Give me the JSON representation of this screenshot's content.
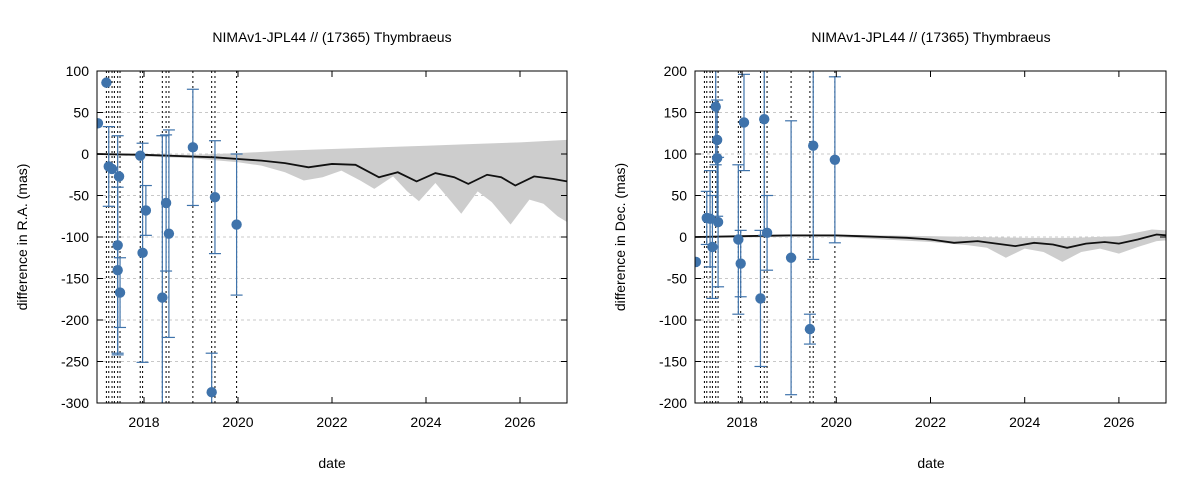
{
  "chart_data": [
    {
      "type": "scatter",
      "title": "NIMAv1-JPL44 // (17365) Thymbraeus",
      "xlabel": "date",
      "ylabel": "difference in R.A. (mas)",
      "xlim": [
        2017.0,
        2027.0
      ],
      "ylim": [
        -300,
        100
      ],
      "x_ticks": [
        2018,
        2020,
        2022,
        2024,
        2026
      ],
      "x_tick_labels": [
        "2018",
        "2020",
        "2022",
        "2024",
        "2026"
      ],
      "y_ticks": [
        100,
        50,
        0,
        -50,
        -100,
        -150,
        -200,
        -250,
        -300
      ],
      "y_tick_labels": [
        "100",
        "50",
        "0",
        "-50",
        "-100",
        "-150",
        "-200",
        "-250",
        "-300"
      ],
      "grid": true,
      "colors": {
        "points": "#3f73ab",
        "band": "#cdcdcd",
        "line": "#111111",
        "vline": "#000000",
        "grid": "#c8c8c8"
      },
      "observation_dates": [
        2017.2,
        2017.25,
        2017.32,
        2017.37,
        2017.44,
        2017.49,
        2017.92,
        2017.97,
        2018.39,
        2018.47,
        2018.53,
        2019.04,
        2019.44,
        2019.51,
        2019.97
      ],
      "points": [
        {
          "x": 2017.02,
          "y": 37,
          "err": 0
        },
        {
          "x": 2017.2,
          "y": 86,
          "err": 0
        },
        {
          "x": 2017.25,
          "y": -15,
          "err": 48
        },
        {
          "x": 2017.32,
          "y": -18,
          "err": 0
        },
        {
          "x": 2017.44,
          "y": -110,
          "err": 132
        },
        {
          "x": 2017.44,
          "y": -140,
          "err": 100
        },
        {
          "x": 2017.47,
          "y": -27,
          "err": 0
        },
        {
          "x": 2017.49,
          "y": -167,
          "err": 42
        },
        {
          "x": 2017.92,
          "y": -2,
          "err": 0
        },
        {
          "x": 2017.97,
          "y": -119,
          "err": 132
        },
        {
          "x": 2018.04,
          "y": -68,
          "err": 30
        },
        {
          "x": 2018.39,
          "y": -173,
          "err": 195
        },
        {
          "x": 2018.47,
          "y": -59,
          "err": 82
        },
        {
          "x": 2018.53,
          "y": -96,
          "err": 125
        },
        {
          "x": 2019.04,
          "y": 8,
          "err": 70
        },
        {
          "x": 2019.44,
          "y": -287,
          "err": 47
        },
        {
          "x": 2019.51,
          "y": -52,
          "err": 68
        },
        {
          "x": 2019.97,
          "y": -85,
          "err": 85
        }
      ],
      "model_line": [
        [
          2017.0,
          0
        ],
        [
          2018.0,
          -1
        ],
        [
          2019.0,
          -3
        ],
        [
          2019.5,
          -4
        ],
        [
          2020.0,
          -6
        ],
        [
          2020.5,
          -8
        ],
        [
          2021.0,
          -11
        ],
        [
          2021.5,
          -16
        ],
        [
          2022.0,
          -12
        ],
        [
          2022.5,
          -13
        ],
        [
          2023.0,
          -28
        ],
        [
          2023.4,
          -22
        ],
        [
          2023.8,
          -33
        ],
        [
          2024.2,
          -23
        ],
        [
          2024.6,
          -28
        ],
        [
          2024.9,
          -36
        ],
        [
          2025.3,
          -25
        ],
        [
          2025.6,
          -28
        ],
        [
          2025.9,
          -38
        ],
        [
          2026.3,
          -27
        ],
        [
          2026.7,
          -30
        ],
        [
          2027.0,
          -33
        ]
      ],
      "band_upper": [
        [
          2017.0,
          1
        ],
        [
          2019.0,
          -1
        ],
        [
          2020.0,
          1
        ],
        [
          2021.0,
          4
        ],
        [
          2022.0,
          6
        ],
        [
          2023.0,
          8
        ],
        [
          2024.0,
          10
        ],
        [
          2025.0,
          12
        ],
        [
          2026.0,
          14
        ],
        [
          2027.0,
          17
        ]
      ],
      "band_lower": [
        [
          2017.0,
          -1
        ],
        [
          2019.0,
          -5
        ],
        [
          2020.0,
          -10
        ],
        [
          2020.5,
          -14
        ],
        [
          2021.0,
          -22
        ],
        [
          2021.4,
          -32
        ],
        [
          2021.8,
          -28
        ],
        [
          2022.2,
          -20
        ],
        [
          2022.6,
          -32
        ],
        [
          2022.9,
          -42
        ],
        [
          2023.3,
          -27
        ],
        [
          2023.6,
          -45
        ],
        [
          2023.85,
          -57
        ],
        [
          2024.2,
          -35
        ],
        [
          2024.5,
          -55
        ],
        [
          2024.75,
          -72
        ],
        [
          2025.1,
          -45
        ],
        [
          2025.4,
          -58
        ],
        [
          2025.8,
          -85
        ],
        [
          2026.2,
          -55
        ],
        [
          2026.5,
          -60
        ],
        [
          2026.8,
          -75
        ],
        [
          2027.0,
          -82
        ]
      ]
    },
    {
      "type": "scatter",
      "title": "NIMAv1-JPL44 // (17365) Thymbraeus",
      "xlabel": "date",
      "ylabel": "difference in Dec. (mas)",
      "xlim": [
        2017.0,
        2027.0
      ],
      "ylim": [
        -200,
        200
      ],
      "x_ticks": [
        2018,
        2020,
        2022,
        2024,
        2026
      ],
      "x_tick_labels": [
        "2018",
        "2020",
        "2022",
        "2024",
        "2026"
      ],
      "y_ticks": [
        200,
        150,
        100,
        50,
        0,
        -50,
        -100,
        -150,
        -200
      ],
      "y_tick_labels": [
        "200",
        "150",
        "100",
        "50",
        "0",
        "-50",
        "-100",
        "-150",
        "-200"
      ],
      "grid": true,
      "colors": {
        "points": "#3f73ab",
        "band": "#cdcdcd",
        "line": "#111111",
        "vline": "#000000",
        "grid": "#c8c8c8"
      },
      "observation_dates": [
        2017.2,
        2017.25,
        2017.32,
        2017.37,
        2017.44,
        2017.49,
        2017.92,
        2017.97,
        2018.39,
        2018.47,
        2018.53,
        2019.04,
        2019.44,
        2019.51,
        2019.97
      ],
      "points": [
        {
          "x": 2017.02,
          "y": -30,
          "err": 0
        },
        {
          "x": 2017.25,
          "y": 23,
          "err": 32
        },
        {
          "x": 2017.32,
          "y": 22,
          "err": 58
        },
        {
          "x": 2017.37,
          "y": -12,
          "err": 62
        },
        {
          "x": 2017.44,
          "y": 157,
          "err": 70
        },
        {
          "x": 2017.47,
          "y": 117,
          "err": 0
        },
        {
          "x": 2017.47,
          "y": 95,
          "err": 70
        },
        {
          "x": 2017.49,
          "y": 18,
          "err": 78
        },
        {
          "x": 2017.92,
          "y": -3,
          "err": 90
        },
        {
          "x": 2017.97,
          "y": -32,
          "err": 40
        },
        {
          "x": 2018.04,
          "y": 138,
          "err": 58
        },
        {
          "x": 2018.39,
          "y": -74,
          "err": 82
        },
        {
          "x": 2018.47,
          "y": 142,
          "err": 140
        },
        {
          "x": 2018.53,
          "y": 5,
          "err": 45
        },
        {
          "x": 2019.04,
          "y": -25,
          "err": 165
        },
        {
          "x": 2019.44,
          "y": -111,
          "err": 18
        },
        {
          "x": 2019.51,
          "y": 110,
          "err": 137
        },
        {
          "x": 2019.97,
          "y": 93,
          "err": 100
        }
      ],
      "model_line": [
        [
          2017.0,
          0
        ],
        [
          2018.0,
          1
        ],
        [
          2019.0,
          2
        ],
        [
          2020.0,
          2
        ],
        [
          2020.5,
          1
        ],
        [
          2021.0,
          0
        ],
        [
          2021.5,
          -1
        ],
        [
          2022.0,
          -3
        ],
        [
          2022.5,
          -7
        ],
        [
          2023.0,
          -5
        ],
        [
          2023.4,
          -8
        ],
        [
          2023.8,
          -11
        ],
        [
          2024.2,
          -7
        ],
        [
          2024.6,
          -9
        ],
        [
          2024.9,
          -13
        ],
        [
          2025.3,
          -8
        ],
        [
          2025.7,
          -6
        ],
        [
          2026.0,
          -8
        ],
        [
          2026.4,
          -3
        ],
        [
          2026.8,
          3
        ],
        [
          2027.0,
          2
        ]
      ],
      "band_upper": [
        [
          2017.0,
          1
        ],
        [
          2019.0,
          3
        ],
        [
          2020.0,
          3
        ],
        [
          2021.0,
          2
        ],
        [
          2022.0,
          1
        ],
        [
          2023.0,
          0
        ],
        [
          2024.0,
          -1
        ],
        [
          2025.0,
          -1
        ],
        [
          2026.0,
          1
        ],
        [
          2026.7,
          9
        ],
        [
          2027.0,
          8
        ]
      ],
      "band_lower": [
        [
          2017.0,
          -1
        ],
        [
          2019.0,
          0
        ],
        [
          2020.0,
          0
        ],
        [
          2021.0,
          -3
        ],
        [
          2022.0,
          -6
        ],
        [
          2022.8,
          -10
        ],
        [
          2023.2,
          -13
        ],
        [
          2023.6,
          -25
        ],
        [
          2024.0,
          -14
        ],
        [
          2024.4,
          -18
        ],
        [
          2024.8,
          -30
        ],
        [
          2025.2,
          -18
        ],
        [
          2025.6,
          -14
        ],
        [
          2026.0,
          -20
        ],
        [
          2026.4,
          -12
        ],
        [
          2026.8,
          -5
        ],
        [
          2027.0,
          -4
        ]
      ]
    }
  ]
}
